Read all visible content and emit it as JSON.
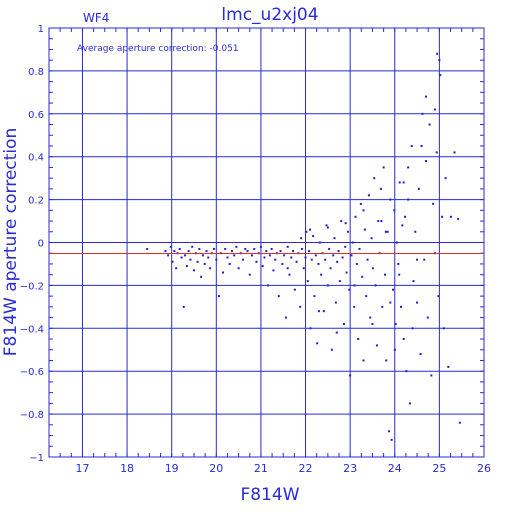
{
  "chart_data": {
    "type": "scatter",
    "title": "lmc_u2xj04",
    "subtitle": "WF4",
    "annotation": "Average aperture correction: -0.051",
    "xlabel": "F814W",
    "ylabel": "F814W aperture correction",
    "xlim": [
      16.25,
      26
    ],
    "ylim": [
      -1,
      1
    ],
    "xticks": [
      17,
      18,
      19,
      20,
      21,
      22,
      23,
      24,
      25,
      26
    ],
    "yticks": [
      -1,
      -0.8,
      -0.6,
      -0.4,
      -0.2,
      0,
      0.2,
      0.4,
      0.6,
      0.8,
      1
    ],
    "grid": true,
    "reference_line": {
      "y": -0.051,
      "color": "#e0302a"
    },
    "colors": {
      "axes": "#2a2ad6",
      "points": "#1f1fcf",
      "reference": "#e0302a"
    },
    "points": [
      [
        18.45,
        -0.03
      ],
      [
        18.86,
        -0.04
      ],
      [
        18.92,
        -0.06
      ],
      [
        18.98,
        -0.02
      ],
      [
        19.02,
        -0.09
      ],
      [
        19.06,
        -0.04
      ],
      [
        19.1,
        -0.12
      ],
      [
        19.13,
        -0.05
      ],
      [
        19.18,
        -0.03
      ],
      [
        19.22,
        -0.07
      ],
      [
        19.27,
        -0.3
      ],
      [
        19.3,
        -0.06
      ],
      [
        19.34,
        -0.11
      ],
      [
        19.38,
        -0.04
      ],
      [
        19.42,
        -0.08
      ],
      [
        19.46,
        -0.02
      ],
      [
        19.5,
        -0.13
      ],
      [
        19.54,
        -0.05
      ],
      [
        19.58,
        -0.09
      ],
      [
        19.62,
        -0.03
      ],
      [
        19.66,
        -0.16
      ],
      [
        19.7,
        -0.06
      ],
      [
        19.74,
        -0.1
      ],
      [
        19.78,
        -0.04
      ],
      [
        19.82,
        -0.07
      ],
      [
        19.86,
        -0.12
      ],
      [
        19.9,
        -0.05
      ],
      [
        19.95,
        -0.03
      ],
      [
        20.0,
        -0.08
      ],
      [
        20.06,
        -0.25
      ],
      [
        20.1,
        -0.05
      ],
      [
        20.15,
        -0.14
      ],
      [
        20.2,
        -0.03
      ],
      [
        20.25,
        -0.07
      ],
      [
        20.3,
        -0.1
      ],
      [
        20.35,
        -0.04
      ],
      [
        20.4,
        -0.06
      ],
      [
        20.45,
        -0.02
      ],
      [
        20.5,
        -0.12
      ],
      [
        20.55,
        -0.05
      ],
      [
        20.6,
        -0.08
      ],
      [
        20.65,
        -0.03
      ],
      [
        20.7,
        -0.04
      ],
      [
        20.75,
        -0.15
      ],
      [
        20.8,
        -0.06
      ],
      [
        20.85,
        -0.03
      ],
      [
        20.9,
        -0.09
      ],
      [
        20.95,
        -0.05
      ],
      [
        21.0,
        -0.02
      ],
      [
        21.04,
        -0.11
      ],
      [
        21.08,
        -0.07
      ],
      [
        21.12,
        -0.04
      ],
      [
        21.16,
        -0.2
      ],
      [
        21.2,
        -0.06
      ],
      [
        21.24,
        -0.03
      ],
      [
        21.28,
        -0.13
      ],
      [
        21.32,
        -0.08
      ],
      [
        21.36,
        -0.05
      ],
      [
        21.4,
        -0.25
      ],
      [
        21.44,
        -0.04
      ],
      [
        21.48,
        -0.1
      ],
      [
        21.52,
        -0.06
      ],
      [
        21.56,
        -0.35
      ],
      [
        21.6,
        -0.02
      ],
      [
        21.64,
        -0.15
      ],
      [
        21.68,
        -0.07
      ],
      [
        21.72,
        -0.04
      ],
      [
        21.76,
        -0.22
      ],
      [
        21.8,
        -0.09
      ],
      [
        21.84,
        -0.05
      ],
      [
        21.88,
        -0.3
      ],
      [
        21.92,
        -0.03
      ],
      [
        21.96,
        -0.12
      ],
      [
        22.0,
        -0.07
      ],
      [
        22.02,
        0.05
      ],
      [
        22.05,
        -0.18
      ],
      [
        22.08,
        -0.04
      ],
      [
        22.11,
        -0.4
      ],
      [
        22.14,
        -0.08
      ],
      [
        22.17,
        0.03
      ],
      [
        22.2,
        -0.25
      ],
      [
        22.23,
        -0.06
      ],
      [
        22.26,
        -0.47
      ],
      [
        22.29,
        -0.1
      ],
      [
        22.32,
        0.0
      ],
      [
        22.35,
        -0.15
      ],
      [
        22.38,
        -0.05
      ],
      [
        22.41,
        -0.32
      ],
      [
        22.44,
        -0.08
      ],
      [
        22.47,
        0.08
      ],
      [
        22.5,
        -0.2
      ],
      [
        22.53,
        -0.03
      ],
      [
        22.56,
        -0.12
      ],
      [
        22.59,
        -0.5
      ],
      [
        22.62,
        -0.06
      ],
      [
        22.65,
        0.02
      ],
      [
        22.68,
        -0.28
      ],
      [
        22.71,
        -0.09
      ],
      [
        22.74,
        -0.04
      ],
      [
        22.77,
        -0.18
      ],
      [
        22.8,
        0.1
      ],
      [
        22.83,
        -0.07
      ],
      [
        22.86,
        -0.38
      ],
      [
        22.89,
        -0.02
      ],
      [
        22.92,
        -0.14
      ],
      [
        22.95,
        0.05
      ],
      [
        22.98,
        -0.22
      ],
      [
        23.0,
        -0.62
      ],
      [
        23.03,
        -0.06
      ],
      [
        23.06,
        0.0
      ],
      [
        23.09,
        -0.3
      ],
      [
        23.12,
        0.12
      ],
      [
        23.15,
        -0.1
      ],
      [
        23.18,
        -0.45
      ],
      [
        23.21,
        -0.03
      ],
      [
        23.24,
        0.18
      ],
      [
        23.27,
        -0.16
      ],
      [
        23.3,
        -0.55
      ],
      [
        23.33,
        0.06
      ],
      [
        23.36,
        -0.25
      ],
      [
        23.39,
        -0.08
      ],
      [
        23.42,
        0.22
      ],
      [
        23.45,
        -0.35
      ],
      [
        23.48,
        0.02
      ],
      [
        23.51,
        -0.12
      ],
      [
        23.54,
        0.3
      ],
      [
        23.57,
        -0.2
      ],
      [
        23.6,
        -0.48
      ],
      [
        23.63,
        0.1
      ],
      [
        23.66,
        -0.05
      ],
      [
        23.69,
        0.25
      ],
      [
        23.72,
        -0.3
      ],
      [
        23.75,
        0.35
      ],
      [
        23.78,
        -0.15
      ],
      [
        23.81,
        -0.55
      ],
      [
        23.84,
        0.05
      ],
      [
        23.87,
        -0.88
      ],
      [
        23.9,
        0.2
      ],
      [
        23.93,
        -0.92
      ],
      [
        23.96,
        -0.22
      ],
      [
        23.99,
        0.15
      ],
      [
        24.02,
        -0.38
      ],
      [
        24.05,
        0.0
      ],
      [
        24.08,
        -0.1
      ],
      [
        24.11,
        0.28
      ],
      [
        24.14,
        -0.3
      ],
      [
        24.17,
        0.08
      ],
      [
        24.2,
        -0.45
      ],
      [
        24.23,
        0.12
      ],
      [
        24.26,
        -0.6
      ],
      [
        24.3,
        0.35
      ],
      [
        24.34,
        -0.75
      ],
      [
        24.38,
        0.45
      ],
      [
        24.42,
        -0.18
      ],
      [
        24.46,
        0.05
      ],
      [
        24.5,
        -0.28
      ],
      [
        24.54,
        0.25
      ],
      [
        24.58,
        -0.52
      ],
      [
        24.62,
        0.6
      ],
      [
        24.66,
        -0.08
      ],
      [
        24.7,
        0.68
      ],
      [
        24.74,
        -0.35
      ],
      [
        24.78,
        0.55
      ],
      [
        24.82,
        -0.62
      ],
      [
        24.86,
        0.18
      ],
      [
        24.9,
        -0.05
      ],
      [
        24.94,
        0.42
      ],
      [
        24.98,
        -0.25
      ],
      [
        25.02,
        0.78
      ],
      [
        25.06,
        0.12
      ],
      [
        25.1,
        -0.4
      ],
      [
        25.14,
        0.3
      ],
      [
        25.2,
        -0.58
      ],
      [
        25.26,
        0.12
      ],
      [
        25.34,
        0.42
      ],
      [
        25.42,
        0.11
      ],
      [
        25.46,
        -0.84
      ],
      [
        21.6,
        -0.12
      ],
      [
        21.9,
        0.02
      ],
      [
        22.1,
        0.06
      ],
      [
        22.3,
        -0.32
      ],
      [
        22.5,
        0.07
      ],
      [
        22.7,
        -0.42
      ],
      [
        22.9,
        0.09
      ],
      [
        23.1,
        -0.2
      ],
      [
        23.3,
        0.15
      ],
      [
        23.5,
        -0.38
      ],
      [
        23.7,
        0.1
      ],
      [
        23.9,
        -0.28
      ],
      [
        24.1,
        -0.15
      ],
      [
        24.3,
        0.2
      ],
      [
        24.5,
        -0.08
      ],
      [
        24.7,
        0.38
      ],
      [
        24.9,
        0.62
      ],
      [
        25.0,
        0.85
      ],
      [
        24.95,
        0.88
      ],
      [
        24.6,
        0.45
      ],
      [
        24.4,
        -0.4
      ],
      [
        24.2,
        0.28
      ],
      [
        24.0,
        -0.5
      ],
      [
        23.8,
        0.05
      ]
    ]
  }
}
